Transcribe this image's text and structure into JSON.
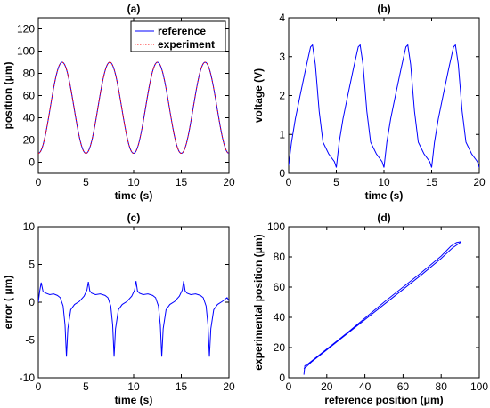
{
  "chart_data": [
    {
      "id": "a",
      "type": "line",
      "title": "(a)",
      "xlabel": "time (s)",
      "ylabel": "position (μm)",
      "xlim": [
        0,
        20
      ],
      "ylim": [
        -10,
        130
      ],
      "xticks": [
        0,
        5,
        10,
        15,
        20
      ],
      "yticks": [
        0,
        20,
        40,
        60,
        80,
        100,
        120
      ],
      "legend_position": "top-right",
      "series": [
        {
          "name": "reference",
          "color": "#0000ff",
          "function": "sinusoid",
          "x_range": [
            0,
            20
          ],
          "offset": 49,
          "amplitude": 41,
          "period_s": 5,
          "phase_s": 1.25
        },
        {
          "name": "experiment",
          "color": "#ff0000",
          "style": "dotted",
          "function": "sinusoid",
          "x_range": [
            0,
            20
          ],
          "offset": 49,
          "amplitude": 41,
          "period_s": 5,
          "phase_s": 1.25
        }
      ]
    },
    {
      "id": "b",
      "type": "line",
      "title": "(b)",
      "xlabel": "time (s)",
      "ylabel": "voltage (V)",
      "xlim": [
        0,
        20
      ],
      "ylim": [
        0,
        4
      ],
      "xticks": [
        0,
        5,
        10,
        15,
        20
      ],
      "yticks": [
        0,
        1,
        2,
        3,
        4
      ],
      "series": [
        {
          "color": "#0000ff",
          "x": [
            0,
            0.3,
            0.7,
            1.2,
            1.8,
            2.3,
            2.5,
            2.8,
            3.2,
            3.6,
            4.2,
            4.8,
            5.0,
            5.3,
            5.7,
            6.2,
            6.8,
            7.3,
            7.5,
            7.8,
            8.2,
            8.6,
            9.2,
            9.8,
            10.0,
            10.3,
            10.7,
            11.2,
            11.8,
            12.3,
            12.5,
            12.8,
            13.2,
            13.6,
            14.2,
            14.8,
            15.0,
            15.3,
            15.7,
            16.2,
            16.8,
            17.3,
            17.5,
            17.8,
            18.2,
            18.6,
            19.2,
            19.8,
            20.0
          ],
          "y": [
            0.2,
            0.8,
            1.4,
            2.0,
            2.7,
            3.25,
            3.3,
            2.8,
            1.6,
            0.8,
            0.5,
            0.3,
            0.15,
            0.8,
            1.4,
            2.0,
            2.7,
            3.25,
            3.3,
            2.8,
            1.6,
            0.8,
            0.5,
            0.3,
            0.15,
            0.8,
            1.4,
            2.0,
            2.7,
            3.25,
            3.3,
            2.8,
            1.6,
            0.8,
            0.5,
            0.3,
            0.15,
            0.8,
            1.4,
            2.0,
            2.7,
            3.25,
            3.3,
            2.8,
            1.6,
            0.8,
            0.5,
            0.3,
            0.15
          ]
        }
      ]
    },
    {
      "id": "c",
      "type": "line",
      "title": "(c)",
      "xlabel": "time (s)",
      "ylabel": "error ( μm)",
      "xlim": [
        0,
        20
      ],
      "ylim": [
        -10,
        10
      ],
      "xticks": [
        0,
        5,
        10,
        15,
        20
      ],
      "yticks": [
        -10,
        -5,
        0,
        5,
        10
      ],
      "series": [
        {
          "color": "#0000ff",
          "x": [
            0,
            0.15,
            0.3,
            0.5,
            0.8,
            1.2,
            1.6,
            2.0,
            2.3,
            2.6,
            2.8,
            2.95,
            3.1,
            3.4,
            3.8,
            4.3,
            4.8,
            5.1,
            5.25,
            5.4,
            5.6,
            6.0,
            6.5,
            7.0,
            7.3,
            7.6,
            7.8,
            7.95,
            8.1,
            8.4,
            8.8,
            9.3,
            9.8,
            10.1,
            10.25,
            10.4,
            10.6,
            11.0,
            11.5,
            12.0,
            12.3,
            12.6,
            12.8,
            12.95,
            13.1,
            13.4,
            13.8,
            14.3,
            14.8,
            15.1,
            15.25,
            15.4,
            15.6,
            16.0,
            16.5,
            17.0,
            17.3,
            17.6,
            17.8,
            17.95,
            18.1,
            18.4,
            18.8,
            19.3,
            19.8,
            20.0
          ],
          "y": [
            0,
            1.5,
            2.6,
            1.4,
            1.2,
            1.0,
            1.1,
            0.9,
            0.6,
            -0.5,
            -3.0,
            -7.2,
            -3.5,
            -1.0,
            -0.3,
            0.1,
            0.8,
            1.6,
            2.7,
            1.5,
            1.2,
            1.0,
            1.1,
            0.9,
            0.6,
            -0.5,
            -3.0,
            -7.2,
            -3.5,
            -1.0,
            -0.3,
            0.1,
            0.8,
            1.6,
            2.8,
            1.5,
            1.2,
            1.0,
            1.1,
            0.9,
            0.6,
            -0.5,
            -3.0,
            -7.2,
            -3.5,
            -1.0,
            -0.3,
            0.1,
            0.8,
            1.6,
            2.8,
            1.5,
            1.2,
            1.0,
            1.1,
            0.9,
            0.6,
            -0.5,
            -3.0,
            -7.2,
            -3.5,
            -1.0,
            -0.3,
            0.1,
            0.6,
            0.2
          ]
        }
      ]
    },
    {
      "id": "d",
      "type": "line",
      "title": "(d)",
      "xlabel": "reference position (μm)",
      "ylabel": "experimental position (μm)",
      "xlim": [
        0,
        100
      ],
      "ylim": [
        0,
        100
      ],
      "xticks": [
        0,
        20,
        40,
        60,
        80,
        100
      ],
      "yticks": [
        0,
        20,
        40,
        60,
        80,
        100
      ],
      "series": [
        {
          "color": "#0000ff",
          "x": [
            8,
            8.5,
            10,
            20,
            30,
            40,
            50,
            60,
            70,
            80,
            85,
            88,
            90,
            90,
            86,
            80,
            70,
            60,
            50,
            40,
            30,
            20,
            12,
            9,
            8
          ],
          "y": [
            2,
            8,
            9,
            19,
            29,
            39.5,
            50,
            60,
            70,
            80.5,
            87,
            89.5,
            90,
            89.5,
            86,
            79,
            68.5,
            58.5,
            48.5,
            38.5,
            28.5,
            18.5,
            10.5,
            7,
            6
          ]
        }
      ]
    }
  ]
}
